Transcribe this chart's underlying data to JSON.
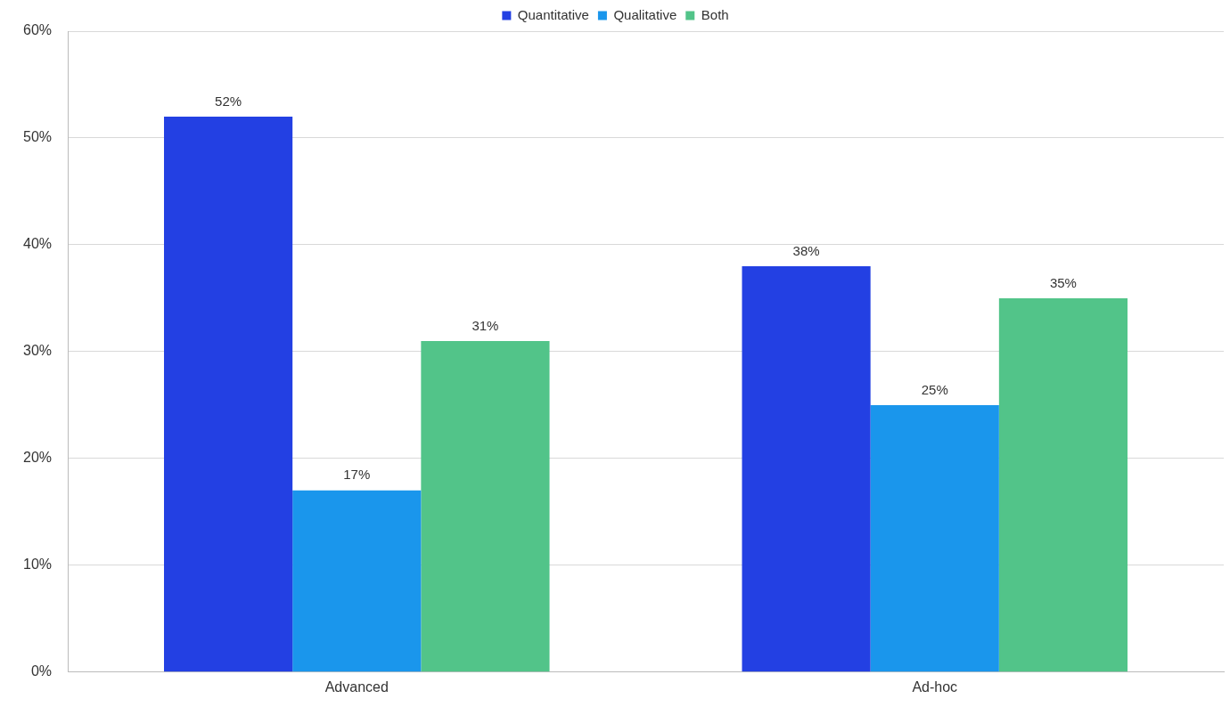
{
  "chart_data": {
    "type": "bar",
    "categories": [
      "Advanced",
      "Ad-hoc"
    ],
    "series": [
      {
        "name": "Quantitative",
        "color": "#2340e3",
        "values": [
          52,
          38
        ],
        "value_labels": [
          "52%",
          "38%"
        ]
      },
      {
        "name": "Qualitative",
        "color": "#1a96ec",
        "values": [
          17,
          25
        ],
        "value_labels": [
          "17%",
          "25%"
        ]
      },
      {
        "name": "Both",
        "color": "#52c489",
        "values": [
          31,
          35
        ],
        "value_labels": [
          "31%",
          "35%"
        ]
      }
    ],
    "ylim": [
      0,
      60
    ],
    "yticks": [
      {
        "value": 0,
        "label": "0%"
      },
      {
        "value": 10,
        "label": "10%"
      },
      {
        "value": 20,
        "label": "20%"
      },
      {
        "value": 30,
        "label": "30%"
      },
      {
        "value": 40,
        "label": "40%"
      },
      {
        "value": 50,
        "label": "50%"
      },
      {
        "value": 60,
        "label": "60%"
      }
    ],
    "grid": "y",
    "legend": "top"
  }
}
